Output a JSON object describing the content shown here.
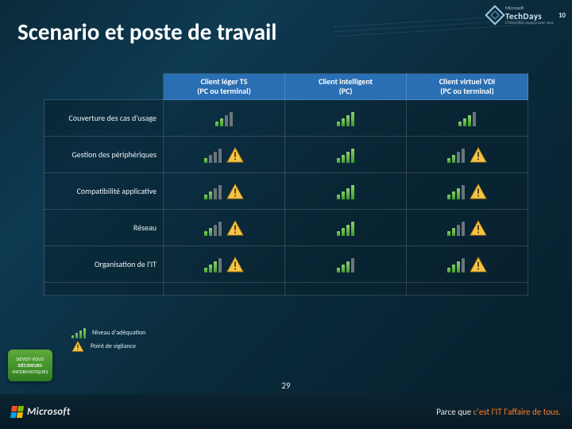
{
  "title": "Scenario et poste de travail",
  "columns": [
    {
      "line1": "Client léger TS",
      "line2": "(PC ou terminal)"
    },
    {
      "line1": "Client intelligent",
      "line2": "(PC)"
    },
    {
      "line1": "Client virtuel VDI",
      "line2": "(PC ou terminal)"
    }
  ],
  "rows": [
    "Couverture des cas d'usage",
    "Gestion des périphériques",
    "Compatibilité applicative",
    "Réseau",
    "Organisation de l'IT"
  ],
  "cells": [
    [
      {
        "bars": 2,
        "warn": false
      },
      {
        "bars": 4,
        "warn": false
      },
      {
        "bars": 3,
        "warn": false
      }
    ],
    [
      {
        "bars": 1,
        "warn": true
      },
      {
        "bars": 4,
        "warn": false
      },
      {
        "bars": 2,
        "warn": true
      }
    ],
    [
      {
        "bars": 2,
        "warn": true
      },
      {
        "bars": 4,
        "warn": false
      },
      {
        "bars": 3,
        "warn": true
      }
    ],
    [
      {
        "bars": 2,
        "warn": true
      },
      {
        "bars": 4,
        "warn": false
      },
      {
        "bars": 2,
        "warn": true
      }
    ],
    [
      {
        "bars": 3,
        "warn": true
      },
      {
        "bars": 3,
        "warn": false
      },
      {
        "bars": 3,
        "warn": true
      }
    ]
  ],
  "legend": {
    "adequation": "Niveau d'adéquation",
    "vigilance": "Point de vigilance"
  },
  "badge": {
    "line1": "DEVOT-VOUS",
    "line2": "DÉCIDEURS",
    "line3": "INFORMATIQUES"
  },
  "topright": {
    "brand": "TechDays",
    "sub": "L'innovation avance avec vous",
    "small": "Microsoft",
    "year": "10"
  },
  "footer": {
    "ms": "Microsoft",
    "tagline_pre": "Parce que ",
    "tagline_orange": "c'est l'IT l'affaire de tous.",
    "pagenum": "29"
  },
  "colors": {
    "header_bg": "#2a6fb3",
    "bar_on_top": "#8ed36a",
    "bar_on_bot": "#3f9a2b",
    "bar_off": "#6b757a",
    "warn_fill": "#f6c445",
    "warn_stroke": "#b07d12"
  }
}
